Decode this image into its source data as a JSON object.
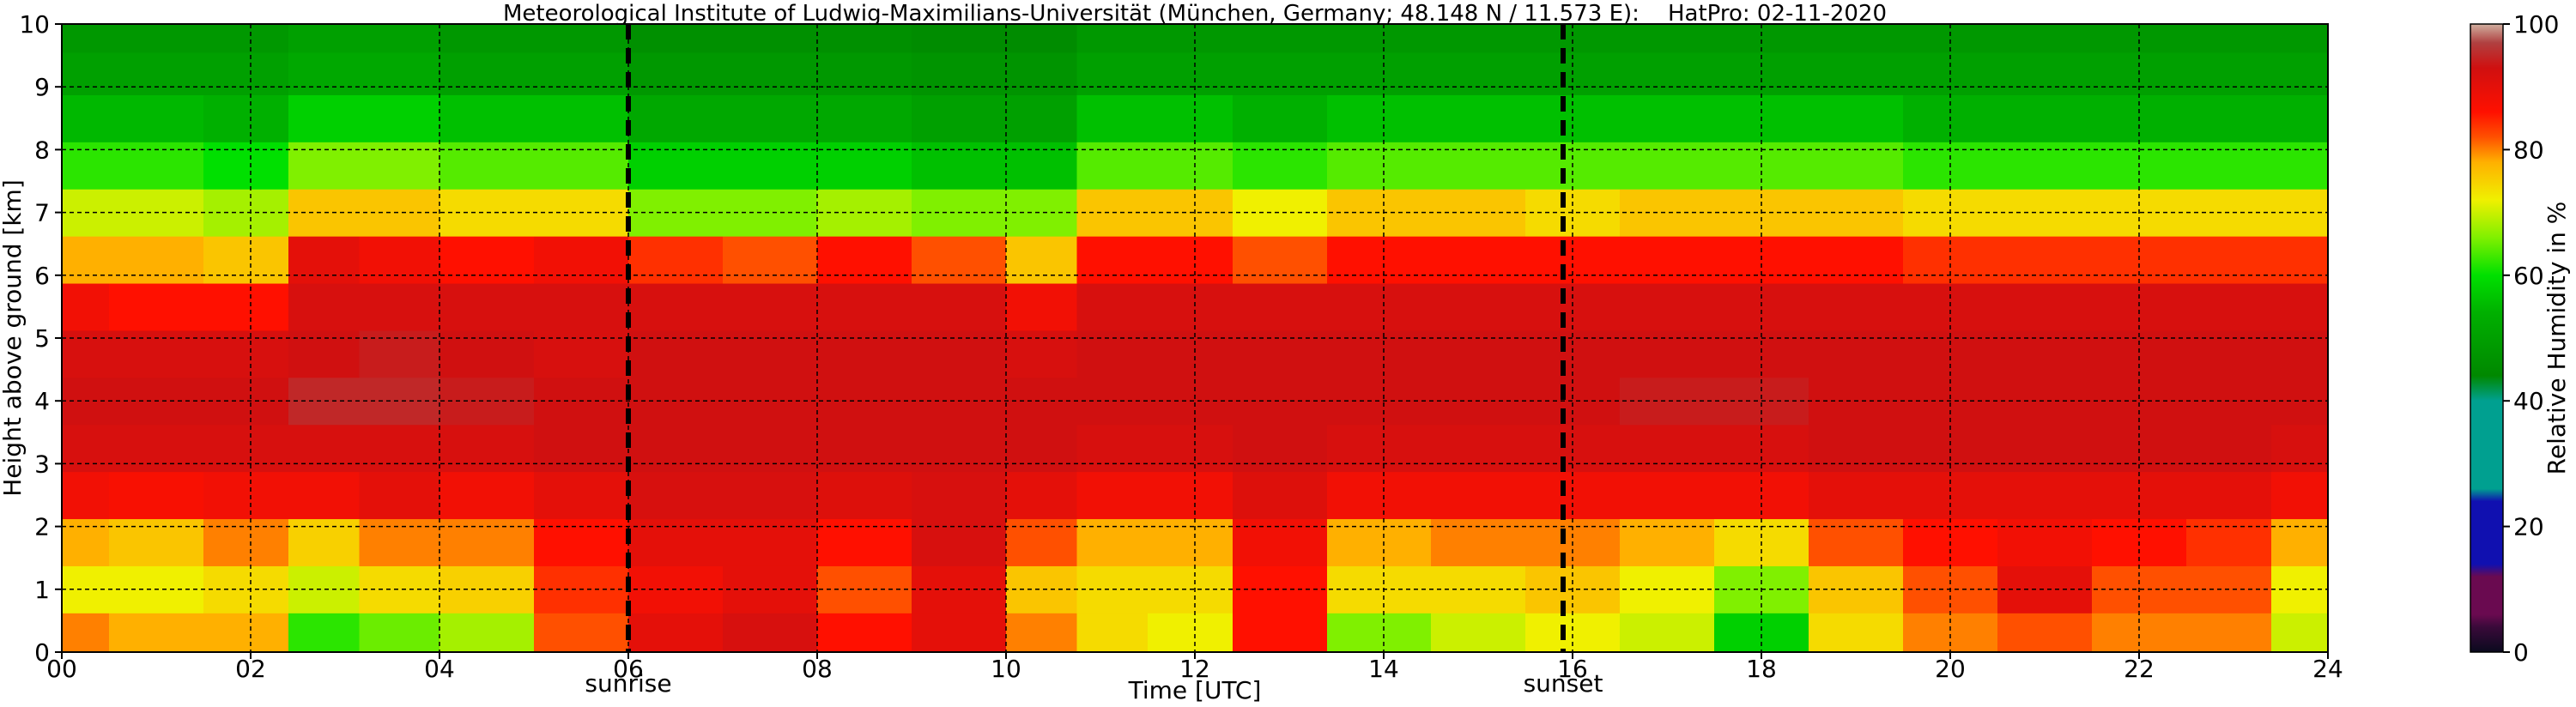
{
  "chart_data": {
    "type": "heatmap",
    "title": "Meteorological Institute of Ludwig-Maximilians-Universität (München, Germany; 48.148 N / 11.573 E):    HatPro: 02-11-2020",
    "xlabel": "Time [UTC]",
    "ylabel": "Height above ground [km]",
    "xlim": [
      0,
      24
    ],
    "ylim": [
      0,
      10
    ],
    "x_ticks": [
      "00",
      "02",
      "04",
      "06",
      "08",
      "10",
      "12",
      "14",
      "16",
      "18",
      "20",
      "22",
      "24"
    ],
    "y_ticks": [
      "0",
      "1",
      "2",
      "3",
      "4",
      "5",
      "6",
      "7",
      "8",
      "9",
      "10"
    ],
    "grid": true,
    "markers": [
      {
        "label": "sunrise",
        "x": 6.0
      },
      {
        "label": "sunset",
        "x": 15.9
      }
    ],
    "colorbar": {
      "label": "Relative Humidity in %",
      "range": [
        0,
        100
      ],
      "ticks": [
        "0",
        "20",
        "40",
        "60",
        "80",
        "100"
      ]
    },
    "series": [
      {
        "name": "Relative Humidity in %",
        "heights_km": [
          0.25,
          1.0,
          1.75,
          2.5,
          3.25,
          4.0,
          4.75,
          5.5,
          6.25,
          7.0,
          7.75,
          8.5,
          9.25,
          9.85
        ],
        "times_utc": [
          0,
          1,
          2,
          2.8,
          3.5,
          4.5,
          5.5,
          6.5,
          7.5,
          8.5,
          9.5,
          10.5,
          11,
          12,
          12.8,
          14,
          15,
          16,
          17,
          18,
          19,
          20,
          21,
          22,
          23,
          23.8
        ],
        "humidity_profiles": [
          [
            80,
            72,
            78,
            88,
            92,
            93,
            92,
            88,
            78,
            70,
            62,
            55,
            50,
            48
          ],
          [
            78,
            72,
            76,
            87,
            92,
            93,
            92,
            86,
            78,
            70,
            62,
            55,
            50,
            48
          ],
          [
            78,
            74,
            80,
            88,
            92,
            93,
            92,
            86,
            76,
            68,
            60,
            54,
            50,
            48
          ],
          [
            62,
            70,
            75,
            88,
            92,
            95,
            93,
            92,
            90,
            76,
            66,
            58,
            52,
            50
          ],
          [
            65,
            74,
            80,
            90,
            92,
            95,
            94,
            92,
            88,
            76,
            66,
            58,
            52,
            50
          ],
          [
            68,
            75,
            80,
            88,
            92,
            94,
            93,
            92,
            86,
            74,
            64,
            56,
            50,
            48
          ],
          [
            82,
            84,
            86,
            90,
            93,
            93,
            92,
            92,
            88,
            74,
            64,
            56,
            50,
            48
          ],
          [
            90,
            88,
            90,
            92,
            93,
            93,
            93,
            92,
            84,
            66,
            58,
            52,
            48,
            46
          ],
          [
            92,
            90,
            90,
            92,
            93,
            93,
            93,
            92,
            82,
            66,
            58,
            52,
            48,
            46
          ],
          [
            86,
            82,
            86,
            91,
            93,
            93,
            93,
            92,
            86,
            68,
            58,
            52,
            48,
            46
          ],
          [
            90,
            90,
            92,
            92,
            93,
            93,
            93,
            92,
            82,
            66,
            56,
            50,
            47,
            45
          ],
          [
            80,
            76,
            82,
            90,
            93,
            93,
            92,
            88,
            76,
            66,
            56,
            50,
            47,
            45
          ],
          [
            74,
            74,
            78,
            88,
            92,
            93,
            93,
            92,
            86,
            76,
            64,
            56,
            50,
            48
          ],
          [
            72,
            74,
            78,
            88,
            92,
            93,
            93,
            92,
            86,
            76,
            64,
            56,
            50,
            48
          ],
          [
            86,
            86,
            88,
            91,
            93,
            93,
            93,
            92,
            82,
            72,
            62,
            54,
            50,
            48
          ],
          [
            66,
            74,
            78,
            88,
            92,
            93,
            93,
            92,
            86,
            76,
            64,
            56,
            50,
            48
          ],
          [
            70,
            74,
            80,
            88,
            92,
            93,
            93,
            92,
            86,
            76,
            64,
            56,
            50,
            48
          ],
          [
            72,
            76,
            80,
            88,
            92,
            93,
            93,
            92,
            86,
            74,
            64,
            56,
            50,
            48
          ],
          [
            70,
            72,
            78,
            88,
            92,
            94,
            93,
            92,
            86,
            76,
            64,
            56,
            50,
            48
          ],
          [
            58,
            66,
            74,
            88,
            92,
            94,
            93,
            92,
            86,
            76,
            64,
            56,
            50,
            48
          ],
          [
            74,
            76,
            82,
            90,
            93,
            93,
            93,
            92,
            86,
            76,
            64,
            56,
            50,
            48
          ],
          [
            80,
            82,
            86,
            90,
            93,
            93,
            93,
            92,
            84,
            74,
            62,
            54,
            50,
            48
          ],
          [
            82,
            90,
            88,
            90,
            93,
            93,
            93,
            92,
            84,
            74,
            62,
            54,
            50,
            48
          ],
          [
            80,
            82,
            86,
            90,
            93,
            93,
            93,
            92,
            84,
            74,
            62,
            54,
            50,
            48
          ],
          [
            80,
            82,
            84,
            90,
            93,
            93,
            93,
            92,
            84,
            74,
            62,
            54,
            50,
            48
          ],
          [
            70,
            72,
            78,
            88,
            92,
            93,
            93,
            92,
            84,
            74,
            62,
            54,
            50,
            48
          ]
        ]
      }
    ]
  }
}
